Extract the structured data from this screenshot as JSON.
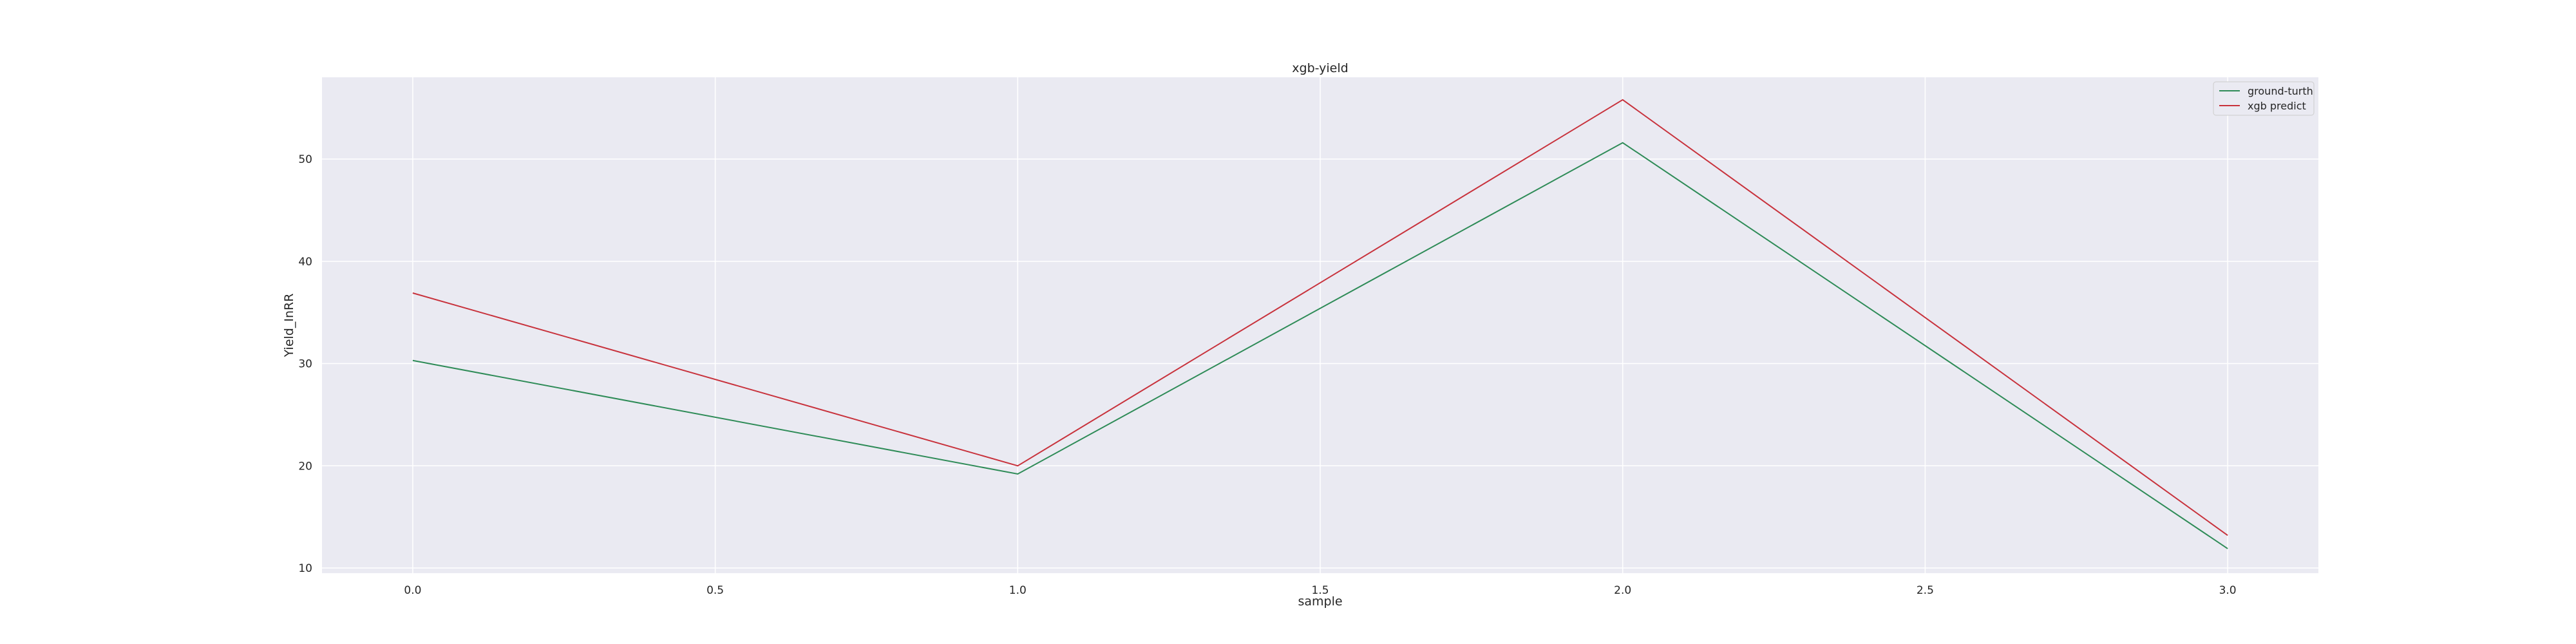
{
  "chart_data": {
    "type": "line",
    "title": "xgb-yield",
    "xlabel": "sample",
    "ylabel": "Yield_InRR",
    "x": [
      0,
      1,
      2,
      3
    ],
    "xticks": [
      0.0,
      0.5,
      1.0,
      1.5,
      2.0,
      2.5,
      3.0
    ],
    "xtick_labels": [
      "0.0",
      "0.5",
      "1.0",
      "1.5",
      "2.0",
      "2.5",
      "3.0"
    ],
    "yticks": [
      10,
      20,
      30,
      40,
      50
    ],
    "ytick_labels": [
      "10",
      "20",
      "30",
      "40",
      "50"
    ],
    "xlim": [
      -0.15,
      3.15
    ],
    "ylim": [
      9.5,
      58
    ],
    "grid": true,
    "legend_position": "top-right",
    "series": [
      {
        "name": "ground-turth",
        "color": "#2e8b57",
        "values": [
          30.3,
          19.2,
          51.6,
          11.9
        ]
      },
      {
        "name": "xgb predict",
        "color": "#c8323c",
        "values": [
          36.9,
          20.0,
          55.8,
          13.2
        ]
      }
    ]
  }
}
